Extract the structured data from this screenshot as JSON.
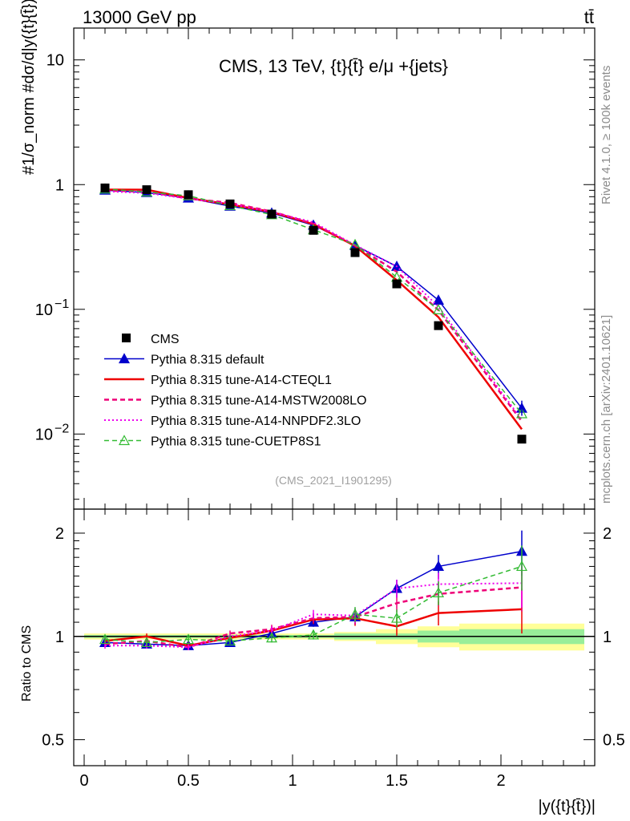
{
  "header": {
    "energy_label": "13000 GeV pp",
    "process_label": "tt̄",
    "plot_title": "CMS, 13 TeV, {t}{t̄} e/μ +{jets}",
    "reference": "(CMS_2021_I1901295)",
    "side_rivet": "Rivet 4.1.0, ≥ 100k events",
    "side_mcplots": "mcplots.cern.ch [arXiv:2401.10621]"
  },
  "chart_data": {
    "type": "line",
    "title": "CMS, 13 TeV, {t}{t̄} e/μ +{jets}",
    "xlabel": "|y({t}{t̄})|",
    "ylabel_main": "#1/σ_norm #dσ/d|y({t}{t̄})|",
    "ylabel_ratio": "Ratio to CMS",
    "xlim": [
      -0.05,
      2.45
    ],
    "ylim_main_log": [
      0.0025,
      18
    ],
    "ylim_ratio_log": [
      0.42,
      2.35
    ],
    "x_ticks": [
      "0",
      "0.5",
      "1",
      "1.5",
      "2"
    ],
    "y_ticks_main": [
      "10^-2",
      "10^-1",
      "1",
      "10"
    ],
    "y_ticks_ratio": [
      "0.5",
      "1",
      "2"
    ],
    "x": [
      0.1,
      0.3,
      0.5,
      0.7,
      0.9,
      1.1,
      1.3,
      1.5,
      1.7,
      2.1
    ],
    "data_series": {
      "name": "CMS",
      "values": [
        0.94,
        0.91,
        0.83,
        0.7,
        0.58,
        0.43,
        0.285,
        0.16,
        0.074,
        0.0091
      ],
      "band_edges": [
        0.0,
        0.2,
        0.4,
        0.6,
        0.8,
        1.0,
        1.2,
        1.4,
        1.6,
        1.8,
        2.4
      ],
      "stat_unc": [
        0.01,
        0.01,
        0.01,
        0.01,
        0.01,
        0.01,
        0.02,
        0.02,
        0.04,
        0.05
      ],
      "tot_unc": [
        0.02,
        0.02,
        0.02,
        0.02,
        0.02,
        0.02,
        0.03,
        0.05,
        0.07,
        0.09
      ]
    },
    "series": [
      {
        "name": "Pythia 8.315 default",
        "color": "#0000cc",
        "style": "solid",
        "marker": "triangle-filled",
        "ratio": [
          0.96,
          0.95,
          0.94,
          0.96,
          1.02,
          1.1,
          1.14,
          1.38,
          1.6,
          1.77
        ]
      },
      {
        "name": "Pythia 8.315 tune-A14-CTEQL1",
        "color": "#ee0000",
        "style": "solid-thick",
        "marker": "none",
        "ratio": [
          0.97,
          1.0,
          0.94,
          0.99,
          1.04,
          1.12,
          1.13,
          1.07,
          1.17,
          1.2
        ]
      },
      {
        "name": "Pythia 8.315 tune-A14-MSTW2008LO",
        "color": "#ee0077",
        "style": "dashed",
        "marker": "none",
        "ratio": [
          0.95,
          0.97,
          0.93,
          1.02,
          1.05,
          1.13,
          1.14,
          1.25,
          1.33,
          1.39
        ]
      },
      {
        "name": "Pythia 8.315 tune-A14-NNPDF2.3LO",
        "color": "#ee00ee",
        "style": "dotted",
        "marker": "none",
        "ratio": [
          0.94,
          0.94,
          0.93,
          1.0,
          1.04,
          1.16,
          1.15,
          1.38,
          1.42,
          1.43
        ]
      },
      {
        "name": "Pythia 8.315 tune-CUETP8S1",
        "color": "#33bb33",
        "style": "dashed",
        "marker": "triangle-open",
        "ratio": [
          0.98,
          0.96,
          0.98,
          0.97,
          0.99,
          1.01,
          1.16,
          1.13,
          1.34,
          1.6
        ]
      }
    ],
    "ratio_errors": [
      0.02,
      0.02,
      0.02,
      0.02,
      0.03,
      0.03,
      0.05,
      0.06,
      0.08,
      0.15
    ]
  }
}
